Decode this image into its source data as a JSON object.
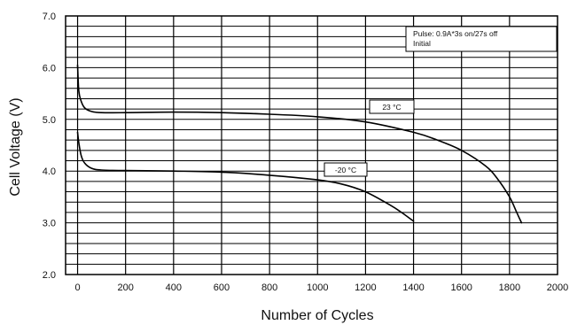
{
  "chart_data": {
    "type": "line",
    "title": "",
    "xlabel": "Number of Cycles",
    "ylabel": "Cell Voltage (V)",
    "xlim": [
      -50,
      2000
    ],
    "ylim": [
      2.0,
      7.0
    ],
    "xticks": [
      0,
      200,
      400,
      600,
      800,
      1000,
      1200,
      1400,
      1600,
      1800,
      2000
    ],
    "yticks": [
      2.0,
      3.0,
      4.0,
      5.0,
      6.0,
      7.0
    ],
    "yticklabels": [
      "2.0",
      "3.0",
      "4.0",
      "5.0",
      "6.0",
      "7.0"
    ],
    "grid": true,
    "annotation_lines": [
      "Pulse: 0.9A*3s on/27s off",
      "Initial"
    ],
    "series": [
      {
        "name": "23 °C",
        "x": [
          0,
          5,
          15,
          30,
          60,
          100,
          200,
          400,
          600,
          800,
          1000,
          1200,
          1400,
          1500,
          1600,
          1700,
          1750,
          1800,
          1830,
          1850
        ],
        "y": [
          6.05,
          5.55,
          5.35,
          5.22,
          5.15,
          5.13,
          5.13,
          5.14,
          5.13,
          5.1,
          5.05,
          4.95,
          4.75,
          4.6,
          4.4,
          4.1,
          3.85,
          3.5,
          3.2,
          3.0
        ]
      },
      {
        "name": "-20 °C",
        "x": [
          0,
          5,
          15,
          30,
          60,
          100,
          200,
          400,
          600,
          800,
          1000,
          1100,
          1200,
          1300,
          1350,
          1400
        ],
        "y": [
          4.75,
          4.55,
          4.3,
          4.15,
          4.05,
          4.02,
          4.01,
          4.0,
          3.98,
          3.92,
          3.83,
          3.75,
          3.6,
          3.35,
          3.2,
          3.03
        ]
      }
    ]
  }
}
